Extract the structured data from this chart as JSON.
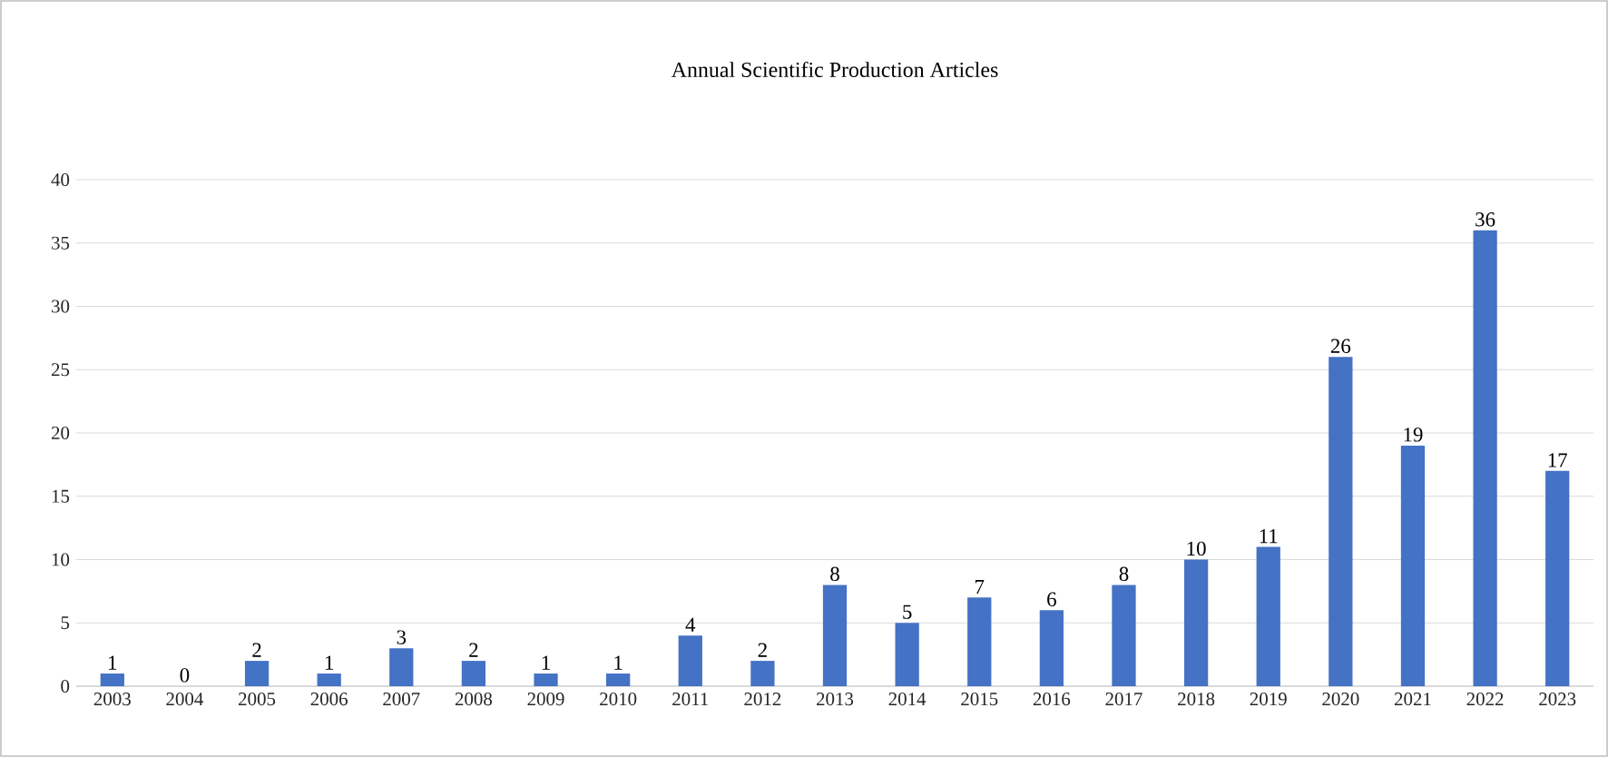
{
  "chart_data": {
    "type": "bar",
    "title": "Annual Scientific Production Articles",
    "categories": [
      "2003",
      "2004",
      "2005",
      "2006",
      "2007",
      "2008",
      "2009",
      "2010",
      "2011",
      "2012",
      "2013",
      "2014",
      "2015",
      "2016",
      "2017",
      "2018",
      "2019",
      "2020",
      "2021",
      "2022",
      "2023"
    ],
    "values": [
      1,
      0,
      2,
      1,
      3,
      2,
      1,
      1,
      4,
      2,
      8,
      5,
      7,
      6,
      8,
      10,
      11,
      26,
      19,
      36,
      17
    ],
    "color": "#4472c4",
    "ylim": [
      0,
      40
    ],
    "yticks": [
      0,
      5,
      10,
      15,
      20,
      25,
      30,
      35,
      40
    ],
    "grid": "y",
    "data_labels": true
  }
}
